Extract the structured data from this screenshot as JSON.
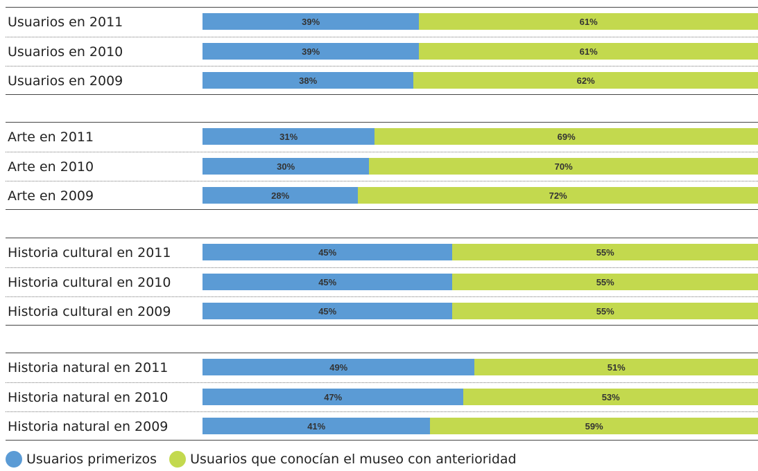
{
  "chart_data": {
    "type": "bar",
    "stacked": true,
    "orientation": "horizontal",
    "colors": {
      "primerizos": "#5b9bd5",
      "anteriores": "#c3d94e"
    },
    "series": [
      {
        "name": "Usuarios primerizos",
        "key": "primerizos"
      },
      {
        "name": "Usuarios que conocían el museo con anterioridad",
        "key": "anteriores"
      }
    ],
    "groups": [
      {
        "rows": [
          {
            "label": "Usuarios en 2011",
            "values": [
              39,
              61
            ]
          },
          {
            "label": "Usuarios en 2010",
            "values": [
              39,
              61
            ]
          },
          {
            "label": "Usuarios en 2009",
            "values": [
              38,
              62
            ]
          }
        ]
      },
      {
        "rows": [
          {
            "label": "Arte en 2011",
            "values": [
              31,
              69
            ]
          },
          {
            "label": "Arte en 2010",
            "values": [
              30,
              70
            ]
          },
          {
            "label": "Arte en 2009",
            "values": [
              28,
              72
            ]
          }
        ]
      },
      {
        "rows": [
          {
            "label": "Historia cultural en 2011",
            "values": [
              45,
              55
            ]
          },
          {
            "label": "Historia cultural en 2010",
            "values": [
              45,
              55
            ]
          },
          {
            "label": "Historia cultural en 2009",
            "values": [
              45,
              55
            ]
          }
        ]
      },
      {
        "rows": [
          {
            "label": "Historia natural en 2011",
            "values": [
              49,
              51
            ]
          },
          {
            "label": "Historia natural en 2010",
            "values": [
              47,
              53
            ]
          },
          {
            "label": "Historia natural en 2009",
            "values": [
              41,
              59
            ]
          }
        ]
      }
    ],
    "value_suffix": "%",
    "xlim": [
      0,
      100
    ],
    "legend": "bottom-left"
  }
}
